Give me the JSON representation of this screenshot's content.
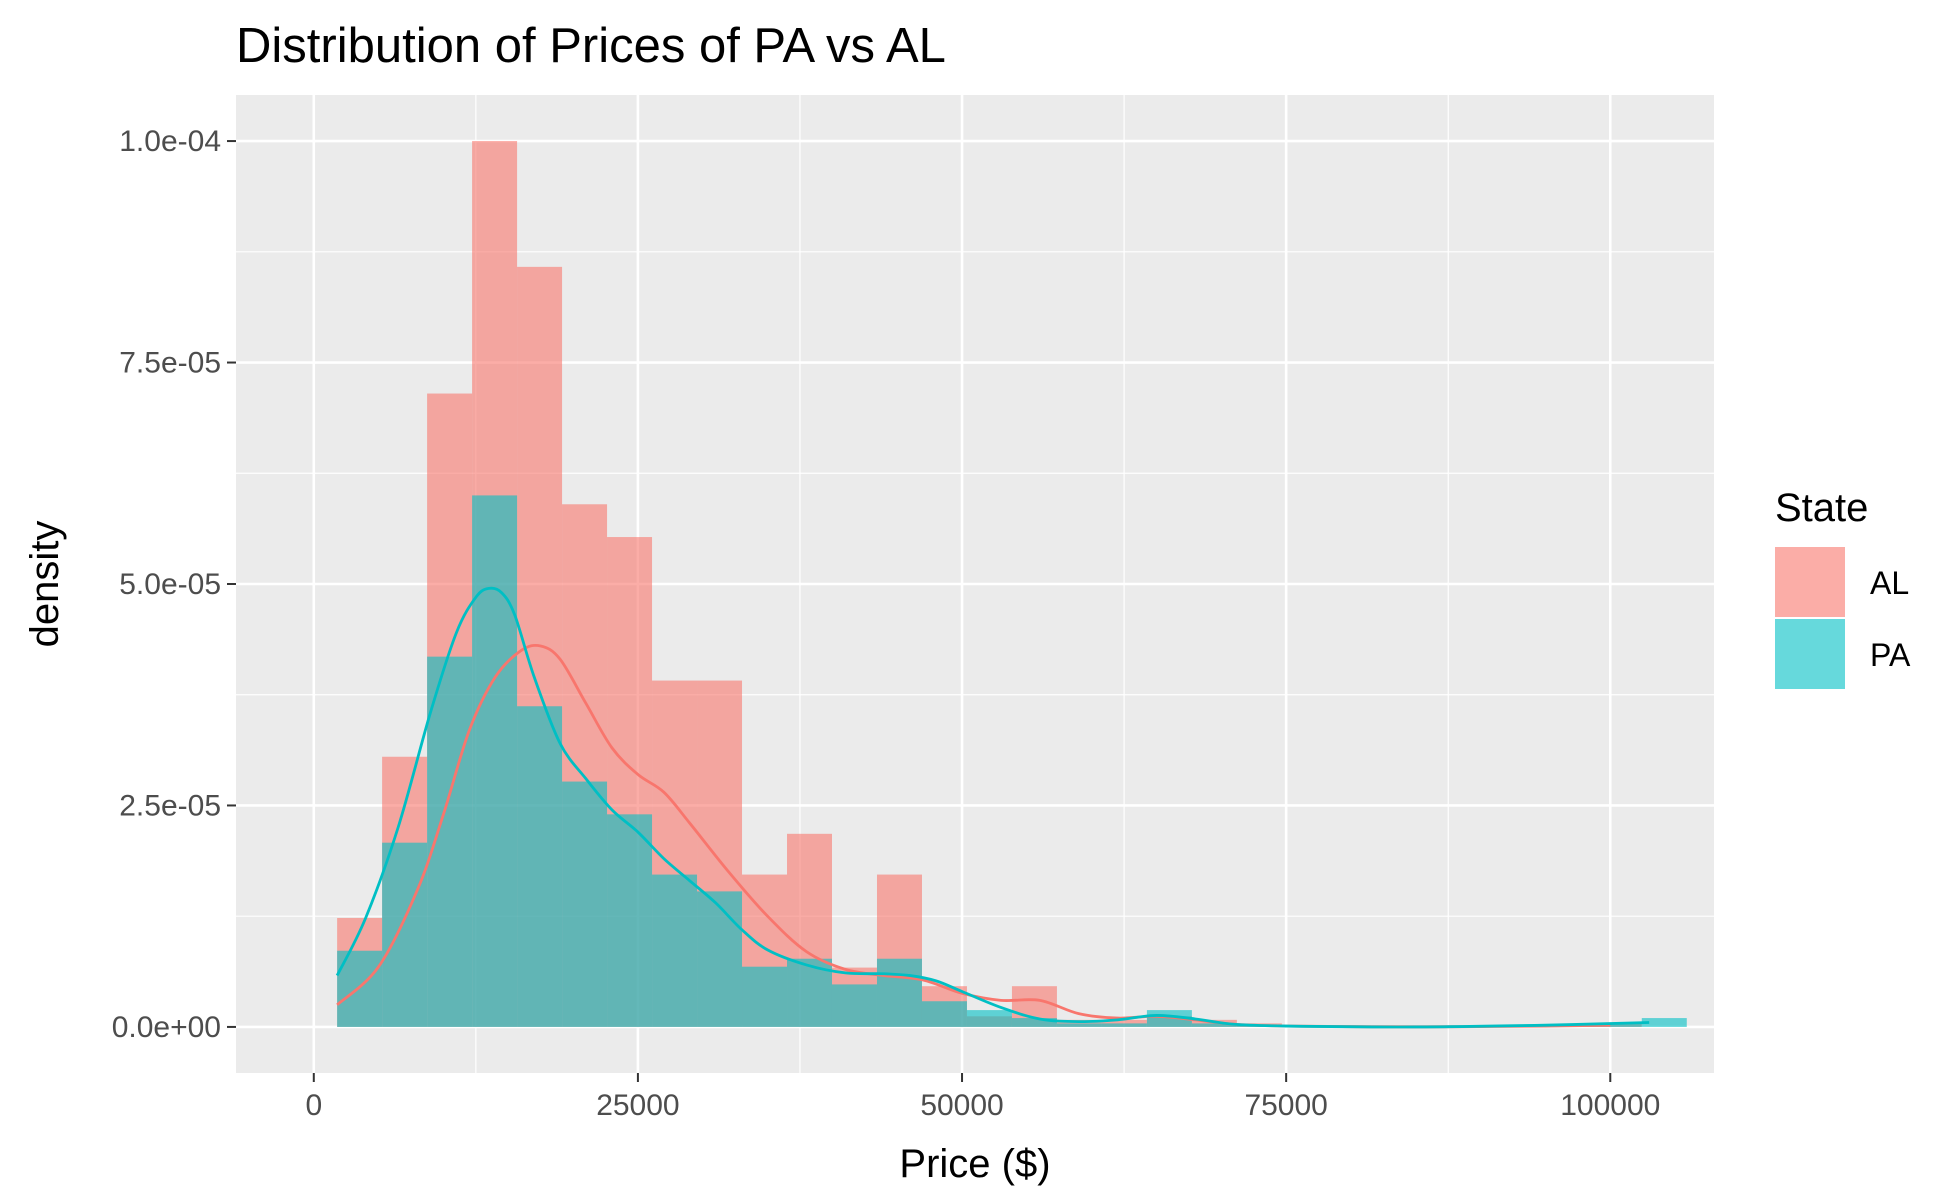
{
  "chart_data": {
    "type": "histogram",
    "title": "Distribution of Prices of PA vs AL",
    "xlabel": "Price ($)",
    "ylabel": "density",
    "xlim": [
      -6000,
      108000
    ],
    "ylim": [
      -5.2e-06,
      0.0001052
    ],
    "x_ticks": [
      0,
      25000,
      50000,
      75000,
      100000
    ],
    "x_tick_labels": [
      "0",
      "25000",
      "50000",
      "75000",
      "100000"
    ],
    "y_ticks": [
      0,
      2.5e-05,
      5e-05,
      7.5e-05,
      0.0001
    ],
    "y_tick_labels": [
      "0.0e+00",
      "2.5e-05",
      "5.0e-05",
      "7.5e-05",
      "1.0e-04"
    ],
    "grid": true,
    "legend": {
      "title": "State",
      "position": "right",
      "entries": [
        {
          "name": "AL",
          "color": "#F8766D"
        },
        {
          "name": "PA",
          "color": "#00BFC4"
        }
      ]
    },
    "bin_edges": [
      1800,
      5270,
      8740,
      12210,
      15680,
      19150,
      22620,
      26090,
      29560,
      33030,
      36500,
      39970,
      43440,
      46910,
      50380,
      53850,
      57320,
      60790,
      64260,
      67730,
      71200,
      74670,
      78140,
      81610,
      85080,
      88550,
      92020,
      95490,
      98960,
      102430
    ],
    "series": [
      {
        "name": "AL",
        "color": "#F8766D",
        "bar_values": [
          1.23e-05,
          3.05e-05,
          7.15e-05,
          0.0001,
          8.58e-05,
          5.9e-05,
          5.53e-05,
          3.91e-05,
          3.91e-05,
          1.72e-05,
          2.18e-05,
          6.7e-06,
          1.72e-05,
          4.6e-06,
          1.2e-06,
          4.6e-06,
          8e-07,
          8e-07,
          1.2e-06,
          8e-07,
          4e-07,
          2e-07,
          2e-07,
          2e-07,
          2e-07,
          2e-07,
          2e-07,
          2e-07,
          4e-07,
          0
        ],
        "density_x": [
          1800,
          5000,
          8000,
          10000,
          12000,
          14000,
          16000,
          17500,
          19000,
          21000,
          23000,
          25000,
          27000,
          29000,
          32000,
          35000,
          38000,
          41000,
          44000,
          47000,
          50000,
          53000,
          56000,
          59000,
          62000,
          65000,
          68000,
          71000,
          75000,
          85000,
          95000,
          100000
        ],
        "density_y": [
          2.5e-06,
          6.8e-06,
          1.55e-05,
          2.4e-05,
          3.35e-05,
          3.95e-05,
          4.25e-05,
          4.3e-05,
          4.15e-05,
          3.65e-05,
          3.15e-05,
          2.85e-05,
          2.65e-05,
          2.3e-05,
          1.75e-05,
          1.25e-05,
          8.5e-06,
          6.5e-06,
          5.8e-06,
          5.3e-06,
          3.8e-06,
          3e-06,
          3e-06,
          1.5e-06,
          1e-06,
          1.2e-06,
          8e-07,
          3e-07,
          1e-07,
          0,
          1e-07,
          2e-07
        ]
      },
      {
        "name": "PA",
        "color": "#00BFC4",
        "bar_values": [
          8.6e-06,
          2.08e-05,
          4.18e-05,
          6e-05,
          3.62e-05,
          2.77e-05,
          2.4e-05,
          1.72e-05,
          1.53e-05,
          6.8e-06,
          7.7e-06,
          4.8e-06,
          7.7e-06,
          2.9e-06,
          1.9e-06,
          1e-06,
          4e-07,
          4e-07,
          1.9e-06,
          4e-07,
          2e-07,
          1e-07,
          1e-07,
          1e-07,
          1e-07,
          1e-07,
          1e-07,
          1e-07,
          4e-07,
          1e-06
        ],
        "density_x": [
          1800,
          4000,
          6500,
          9000,
          11000,
          12500,
          13500,
          14500,
          15500,
          17000,
          19000,
          21000,
          23000,
          25000,
          27000,
          29000,
          31000,
          33000,
          35000,
          38000,
          41000,
          44000,
          46000,
          48000,
          50000,
          53000,
          56000,
          59000,
          62000,
          65000,
          68000,
          71000,
          75000,
          85000,
          95000,
          103000
        ],
        "density_y": [
          5.8e-06,
          1.23e-05,
          2.25e-05,
          3.55e-05,
          4.45e-05,
          4.85e-05,
          4.95e-05,
          4.9e-05,
          4.65e-05,
          3.95e-05,
          3.2e-05,
          2.8e-05,
          2.45e-05,
          2.2e-05,
          1.9e-05,
          1.65e-05,
          1.4e-05,
          1.1e-05,
          8.7e-06,
          7e-06,
          6.1e-06,
          6e-06,
          5.8e-06,
          5.2e-06,
          4e-06,
          2.2e-06,
          9e-07,
          6e-07,
          8e-07,
          1.3e-06,
          9e-07,
          3e-07,
          1e-07,
          0,
          2e-07,
          5e-07
        ]
      }
    ]
  }
}
